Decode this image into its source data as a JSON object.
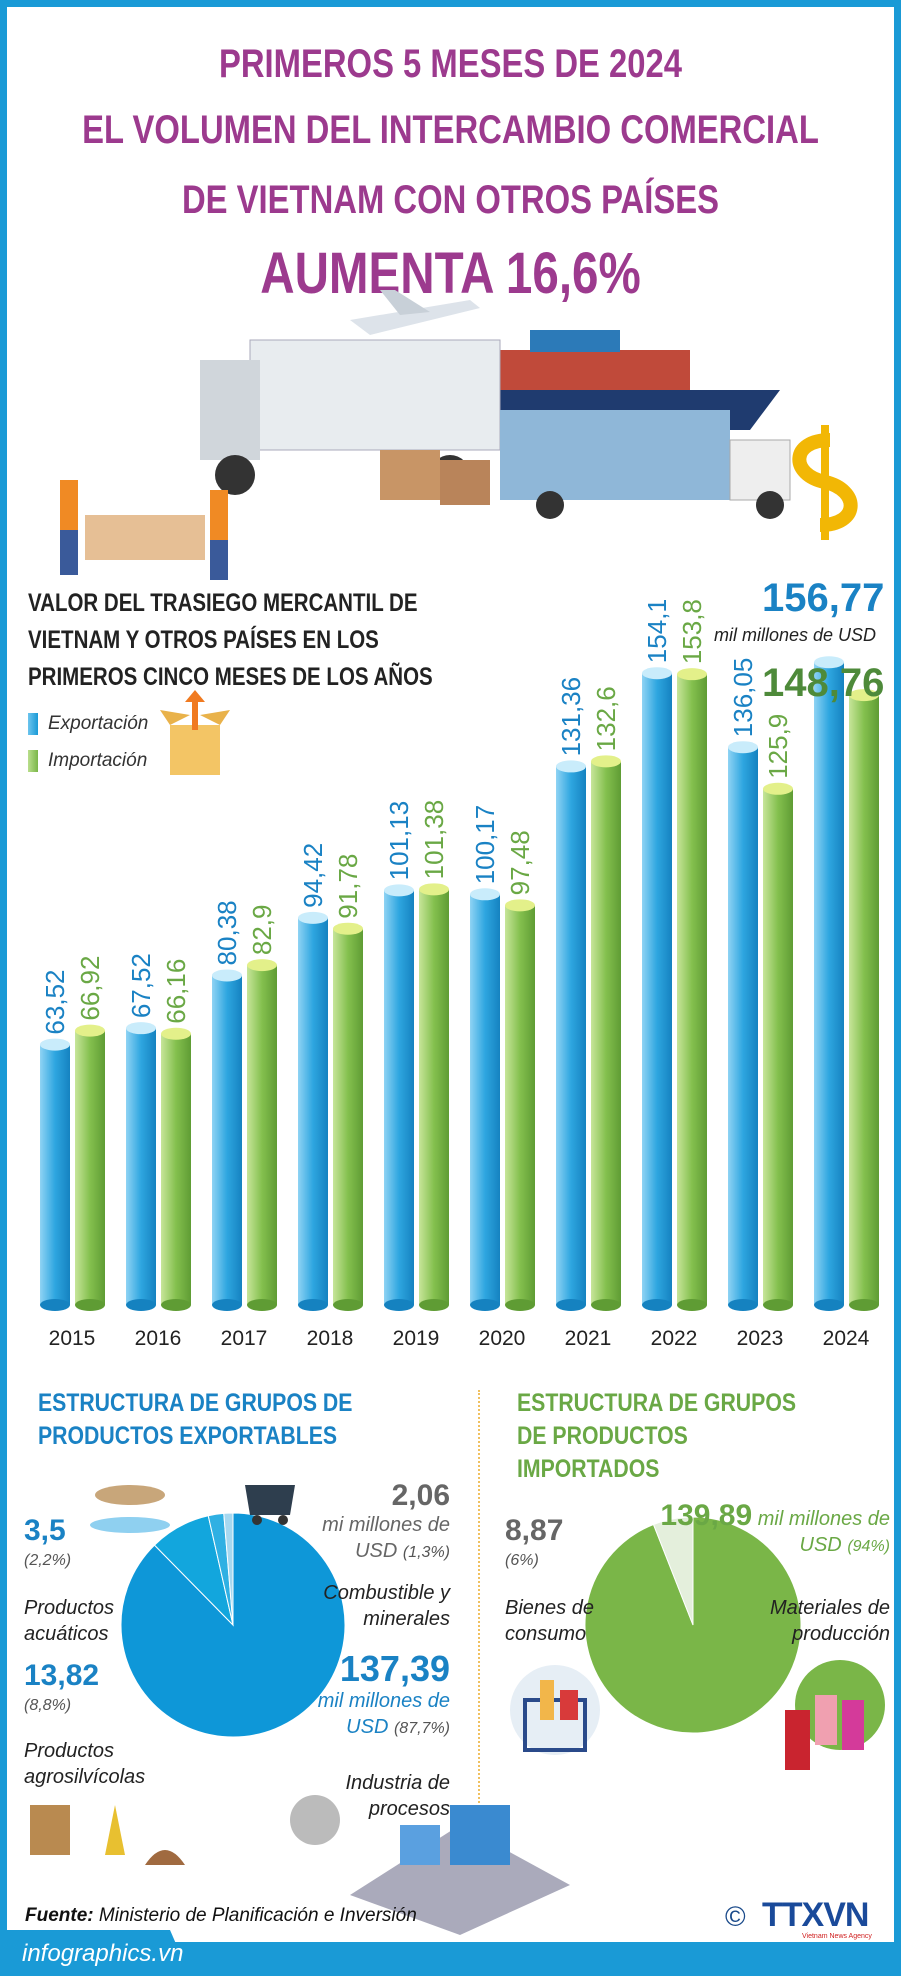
{
  "header": {
    "line1": "PRIMEROS 5 MESES DE 2024",
    "line2": "EL VOLUMEN DEL INTERCAMBIO COMERCIAL",
    "line3": "DE VIETNAM CON OTROS PAÍSES",
    "line4": "AUMENTA 16,6%"
  },
  "colors": {
    "title": "#9c3a8e",
    "border": "#1a9ad6",
    "export": "#1a9ad6",
    "import": "#7ab648",
    "import_dark": "#4e8a3a"
  },
  "chart_data": [
    {
      "type": "bar",
      "title": "VALOR DEL TRASIEGO MERCANTIL DE VIETNAM Y OTROS PAÍSES EN LOS PRIMEROS CINCO MESES DE LOS AÑOS",
      "categories": [
        "2015",
        "2016",
        "2017",
        "2018",
        "2019",
        "2020",
        "2021",
        "2022",
        "2023",
        "2024"
      ],
      "series": [
        {
          "name": "Exportación",
          "color": "#1a9ad6",
          "labels": [
            "63,52",
            "67,52",
            "80,38",
            "94,42",
            "101,13",
            "100,17",
            "131,36",
            "154,1",
            "136,05",
            "156,77"
          ],
          "values": [
            63.52,
            67.52,
            80.38,
            94.42,
            101.13,
            100.17,
            131.36,
            154.1,
            136.05,
            156.77
          ]
        },
        {
          "name": "Importación",
          "color": "#7ab648",
          "labels": [
            "66,92",
            "66,16",
            "82,9",
            "91,78",
            "101,38",
            "97,48",
            "132,6",
            "153,86",
            "125,9",
            "148,76"
          ],
          "values": [
            66.92,
            66.16,
            82.9,
            91.78,
            101.38,
            97.48,
            132.6,
            153.86,
            125.9,
            148.76
          ]
        }
      ],
      "unit_note": "mil millones de USD",
      "legend": "left",
      "grid": false
    },
    {
      "type": "pie",
      "title": "ESTRUCTURA DE GRUPOS DE PRODUCTOS EXPORTABLES",
      "slices": [
        {
          "label": "Industria de procesos",
          "value": 137.39,
          "value_text": "137,39",
          "unit": "mil millones de USD",
          "pct": "(87,7%)",
          "color": "#0e97d8"
        },
        {
          "label": "Productos agrosilvícolas",
          "value": 13.82,
          "value_text": "13,82",
          "pct": "(8,8%)",
          "color": "#12a6dd"
        },
        {
          "label": "Productos acuáticos",
          "value": 3.5,
          "value_text": "3,5",
          "pct": "(2,2%)",
          "color": "#2fb0e3"
        },
        {
          "label": "Combustible y minerales",
          "value": 2.06,
          "value_text": "2,06",
          "unit": "mi millones de USD",
          "pct": "(1,3%)",
          "color": "#a6d8f0"
        }
      ]
    },
    {
      "type": "pie",
      "title": "ESTRUCTURA DE GRUPOS DE PRODUCTOS IMPORTADOS",
      "slices": [
        {
          "label": "Materiales de producción",
          "value": 139.89,
          "value_text": "139,89",
          "unit": "mil millones de USD",
          "pct": "(94%)",
          "color": "#7ab648"
        },
        {
          "label": "Bienes de consumo",
          "value": 8.87,
          "value_text": "8,87",
          "pct": "(6%)",
          "color": "#e4efdc"
        }
      ]
    }
  ],
  "footer": {
    "source_label": "Fuente:",
    "source": "Ministerio de Planificación e Inversión",
    "site": "infographics.vn",
    "copyright": "©",
    "logo": "TTXVN",
    "logo_sub": "Vietnam News Agency"
  }
}
